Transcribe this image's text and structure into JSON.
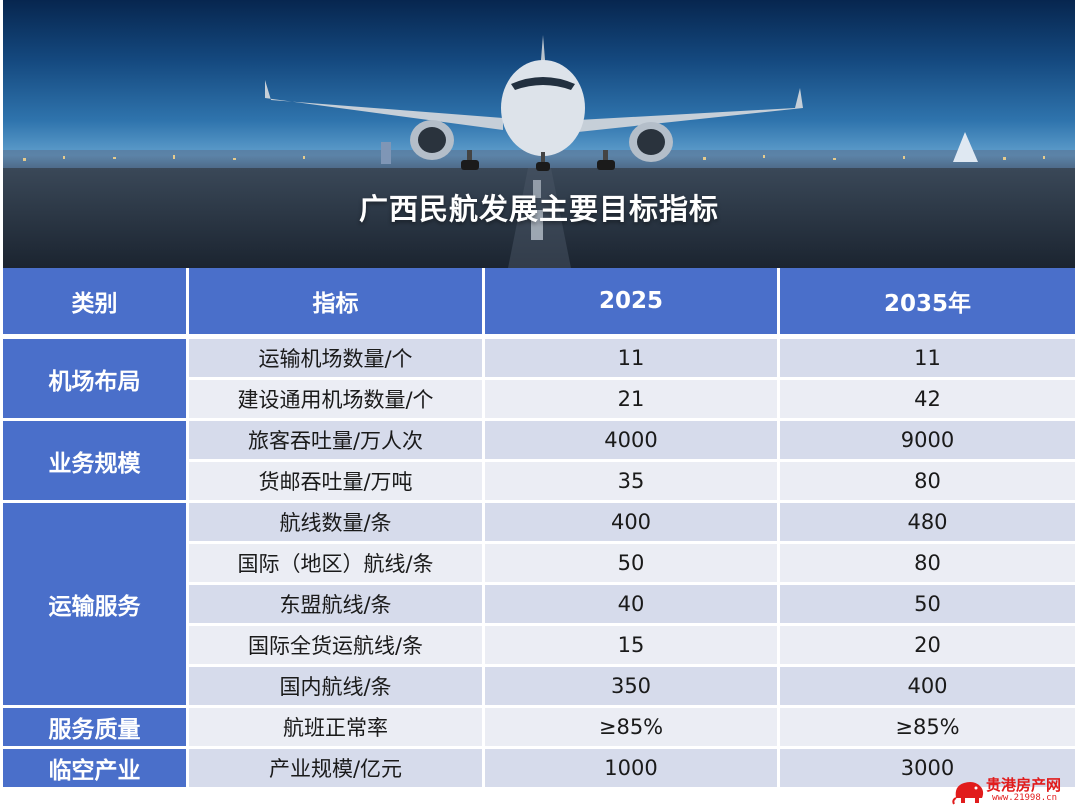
{
  "banner": {
    "title": "广西民航发展主要目标指标"
  },
  "table": {
    "headers": [
      "类别",
      "指标",
      "2025",
      "2035年"
    ],
    "groups": [
      {
        "category": "机场布局",
        "rows": [
          {
            "indicator": "运输机场数量/个",
            "y2025": "11",
            "y2035": "11"
          },
          {
            "indicator": "建设通用机场数量/个",
            "y2025": "21",
            "y2035": "42"
          }
        ]
      },
      {
        "category": "业务规模",
        "rows": [
          {
            "indicator": "旅客吞吐量/万人次",
            "y2025": "4000",
            "y2035": "9000"
          },
          {
            "indicator": "货邮吞吐量/万吨",
            "y2025": "35",
            "y2035": "80"
          }
        ]
      },
      {
        "category": "运输服务",
        "rows": [
          {
            "indicator": "航线数量/条",
            "y2025": "400",
            "y2035": "480"
          },
          {
            "indicator": "国际（地区）航线/条",
            "y2025": "50",
            "y2035": "80"
          },
          {
            "indicator": "东盟航线/条",
            "y2025": "40",
            "y2035": "50"
          },
          {
            "indicator": "国际全货运航线/条",
            "y2025": "15",
            "y2035": "20"
          },
          {
            "indicator": "国内航线/条",
            "y2025": "350",
            "y2035": "400"
          }
        ]
      },
      {
        "category": "服务质量",
        "rows": [
          {
            "indicator": "航班正常率",
            "y2025": "≥85%",
            "y2035": "≥85%"
          }
        ]
      },
      {
        "category": "临空产业",
        "rows": [
          {
            "indicator": "产业规模/亿元",
            "y2025": "1000",
            "y2035": "3000"
          }
        ]
      }
    ]
  },
  "watermark": {
    "name": "贵港房产网",
    "url": "www.21998.cn",
    "color": "#e11c1c"
  },
  "colors": {
    "header_bg": "#4a6fca",
    "row_odd": "#d6dbeb",
    "row_even": "#ebedf4"
  }
}
